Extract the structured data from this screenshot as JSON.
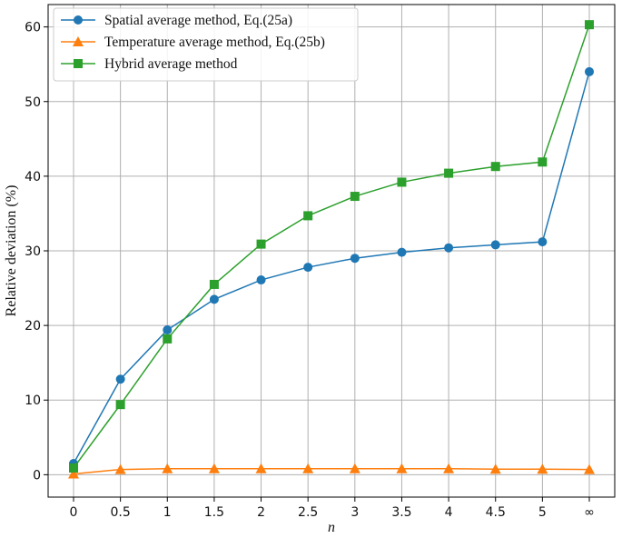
{
  "chart_data": {
    "type": "line",
    "categories": [
      "0",
      "0.5",
      "1",
      "1.5",
      "2",
      "2.5",
      "3",
      "3.5",
      "4",
      "4.5",
      "5",
      "∞"
    ],
    "xlabel": "n",
    "ylabel": "Relative deviation (%)",
    "ylim": [
      -3,
      63
    ],
    "yticks": [
      0,
      10,
      20,
      30,
      40,
      50,
      60
    ],
    "grid": true,
    "legend_position": "top-left",
    "series": [
      {
        "name": "Spatial average method, Eq.(25a)",
        "color": "#1f77b4",
        "marker": "circle",
        "values": [
          1.5,
          12.8,
          19.4,
          23.5,
          26.1,
          27.8,
          29.0,
          29.8,
          30.4,
          30.8,
          31.2,
          54.0
        ]
      },
      {
        "name": "Temperature average method, Eq.(25b)",
        "color": "#ff7f0e",
        "marker": "triangle",
        "values": [
          0.1,
          0.7,
          0.8,
          0.8,
          0.8,
          0.8,
          0.8,
          0.8,
          0.8,
          0.75,
          0.75,
          0.7
        ]
      },
      {
        "name": "Hybrid average method",
        "color": "#2ca02c",
        "marker": "square",
        "values": [
          0.9,
          9.4,
          18.2,
          25.5,
          30.9,
          34.7,
          37.3,
          39.2,
          40.4,
          41.3,
          41.9,
          60.3
        ]
      }
    ]
  }
}
